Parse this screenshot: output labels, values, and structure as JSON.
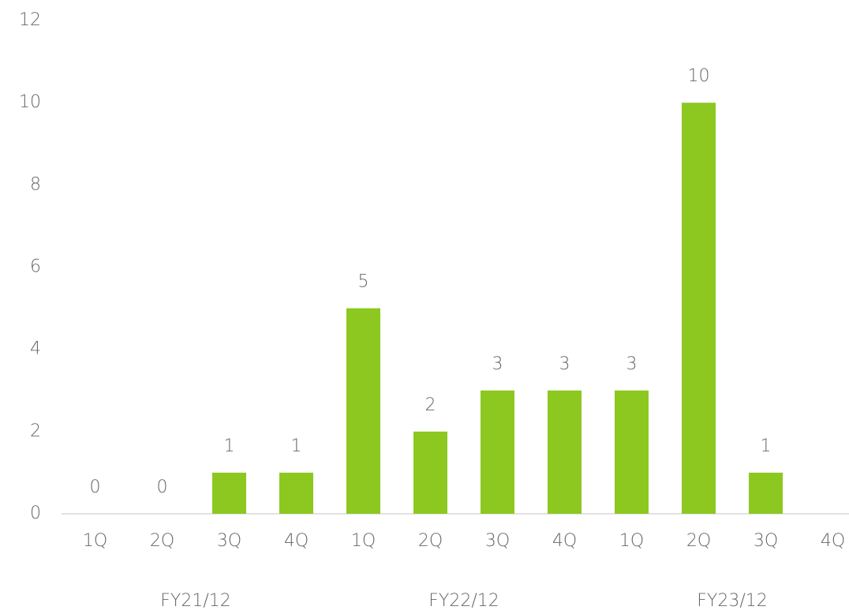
{
  "chart_data": {
    "type": "bar",
    "categories": [
      "1Q",
      "2Q",
      "3Q",
      "4Q",
      "1Q",
      "2Q",
      "3Q",
      "4Q",
      "1Q",
      "2Q",
      "3Q",
      "4Q"
    ],
    "groups": [
      "FY21/12",
      "FY22/12",
      "FY23/12"
    ],
    "values": [
      0,
      0,
      1,
      1,
      5,
      2,
      3,
      3,
      3,
      10,
      1,
      null
    ],
    "color": "#8cc820",
    "ylim": [
      0,
      12
    ],
    "yticks": [
      0,
      2,
      4,
      6,
      8,
      10,
      12
    ],
    "grid": false
  }
}
